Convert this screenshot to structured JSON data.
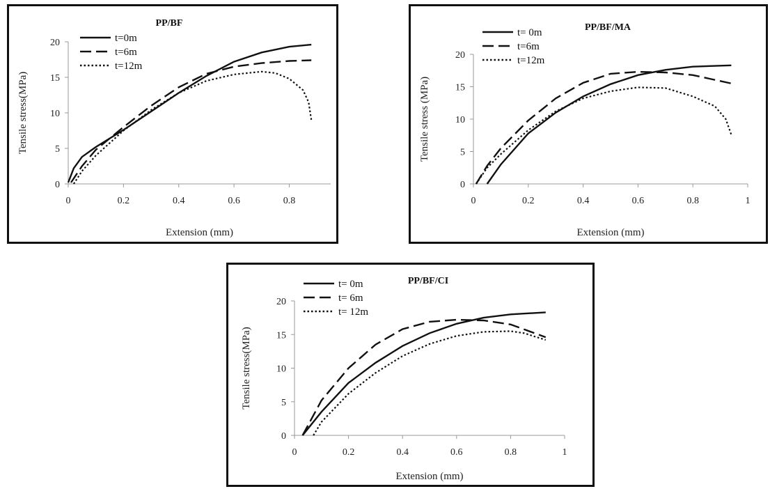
{
  "chart_data": [
    {
      "type": "line",
      "title": "PP/BF",
      "xlabel": "Extension (mm)",
      "ylabel": "Tensile stress(MPa)",
      "xlim": [
        0,
        0.95
      ],
      "ylim": [
        0,
        20
      ],
      "x_ticks": [
        "0",
        "0.2",
        "0.4",
        "0.6",
        "0.8"
      ],
      "y_ticks": [
        "0",
        "5",
        "10",
        "15",
        "20"
      ],
      "legend": [
        "t=0m",
        "t=6m",
        "t=12m"
      ],
      "legend_placement": "top-left",
      "grid": false,
      "series": [
        {
          "name": "t=0m",
          "style": "solid",
          "points": [
            [
              0,
              0.2
            ],
            [
              0.02,
              2.2
            ],
            [
              0.05,
              3.8
            ],
            [
              0.1,
              5.2
            ],
            [
              0.2,
              7.6
            ],
            [
              0.3,
              10.2
            ],
            [
              0.4,
              12.8
            ],
            [
              0.5,
              15.2
            ],
            [
              0.6,
              17.2
            ],
            [
              0.7,
              18.5
            ],
            [
              0.8,
              19.3
            ],
            [
              0.88,
              19.6
            ]
          ]
        },
        {
          "name": "t=6m",
          "style": "dashed",
          "points": [
            [
              0.01,
              0.2
            ],
            [
              0.05,
              2.5
            ],
            [
              0.1,
              4.8
            ],
            [
              0.2,
              8.0
            ],
            [
              0.3,
              11.0
            ],
            [
              0.4,
              13.6
            ],
            [
              0.5,
              15.5
            ],
            [
              0.6,
              16.5
            ],
            [
              0.7,
              17.0
            ],
            [
              0.8,
              17.3
            ],
            [
              0.88,
              17.4
            ]
          ]
        },
        {
          "name": "t=12m",
          "style": "dotted",
          "points": [
            [
              0.02,
              0
            ],
            [
              0.05,
              1.8
            ],
            [
              0.1,
              4.0
            ],
            [
              0.2,
              7.5
            ],
            [
              0.3,
              10.4
            ],
            [
              0.4,
              12.8
            ],
            [
              0.5,
              14.5
            ],
            [
              0.6,
              15.4
            ],
            [
              0.7,
              15.8
            ],
            [
              0.75,
              15.6
            ],
            [
              0.8,
              14.8
            ],
            [
              0.85,
              13.2
            ],
            [
              0.87,
              11.5
            ],
            [
              0.88,
              9.0
            ]
          ]
        }
      ]
    },
    {
      "type": "line",
      "title": "PP/BF/MA",
      "xlabel": "Extension (mm)",
      "ylabel": "Tensile stress (MPa)",
      "xlim": [
        0,
        1.0
      ],
      "ylim": [
        0,
        20
      ],
      "x_ticks": [
        "0",
        "0.2",
        "0.4",
        "0.6",
        "0.8",
        "1"
      ],
      "y_ticks": [
        "0",
        "5",
        "10",
        "15",
        "20"
      ],
      "legend": [
        "t= 0m",
        "t=6m",
        "t=12m"
      ],
      "legend_placement": "top-left",
      "grid": false,
      "series": [
        {
          "name": "t= 0m",
          "style": "solid",
          "points": [
            [
              0.05,
              0
            ],
            [
              0.1,
              3.0
            ],
            [
              0.2,
              7.8
            ],
            [
              0.3,
              11.0
            ],
            [
              0.4,
              13.5
            ],
            [
              0.5,
              15.4
            ],
            [
              0.6,
              16.8
            ],
            [
              0.7,
              17.6
            ],
            [
              0.8,
              18.1
            ],
            [
              0.94,
              18.3
            ]
          ]
        },
        {
          "name": "t=6m",
          "style": "dashed",
          "points": [
            [
              0.01,
              0
            ],
            [
              0.05,
              2.8
            ],
            [
              0.1,
              5.5
            ],
            [
              0.2,
              9.8
            ],
            [
              0.3,
              13.2
            ],
            [
              0.4,
              15.6
            ],
            [
              0.5,
              17.0
            ],
            [
              0.6,
              17.3
            ],
            [
              0.7,
              17.2
            ],
            [
              0.8,
              16.8
            ],
            [
              0.94,
              15.5
            ]
          ]
        },
        {
          "name": "t=12m",
          "style": "dotted",
          "points": [
            [
              0.01,
              0
            ],
            [
              0.05,
              2.5
            ],
            [
              0.1,
              4.6
            ],
            [
              0.2,
              8.3
            ],
            [
              0.3,
              11.2
            ],
            [
              0.4,
              13.2
            ],
            [
              0.5,
              14.3
            ],
            [
              0.6,
              14.9
            ],
            [
              0.7,
              14.8
            ],
            [
              0.8,
              13.5
            ],
            [
              0.88,
              12.0
            ],
            [
              0.92,
              10.0
            ],
            [
              0.94,
              7.6
            ]
          ]
        }
      ]
    },
    {
      "type": "line",
      "title": "PP/BF/CI",
      "xlabel": "Extension (mm)",
      "ylabel": "Tensile stress(MPa)",
      "xlim": [
        0,
        1.0
      ],
      "ylim": [
        0,
        20
      ],
      "x_ticks": [
        "0",
        "0.2",
        "0.4",
        "0.6",
        "0.8",
        "1"
      ],
      "y_ticks": [
        "0",
        "5",
        "10",
        "15",
        "20"
      ],
      "legend": [
        "t= 0m",
        "t= 6m",
        "t= 12m"
      ],
      "legend_placement": "top-left",
      "grid": false,
      "series": [
        {
          "name": "t= 0m",
          "style": "solid",
          "points": [
            [
              0.03,
              0
            ],
            [
              0.1,
              3.5
            ],
            [
              0.2,
              7.8
            ],
            [
              0.3,
              10.8
            ],
            [
              0.4,
              13.3
            ],
            [
              0.5,
              15.2
            ],
            [
              0.6,
              16.6
            ],
            [
              0.7,
              17.5
            ],
            [
              0.8,
              18.0
            ],
            [
              0.93,
              18.3
            ]
          ]
        },
        {
          "name": "t= 6m",
          "style": "dashed",
          "points": [
            [
              0.03,
              0
            ],
            [
              0.1,
              5.2
            ],
            [
              0.2,
              10.0
            ],
            [
              0.3,
              13.5
            ],
            [
              0.4,
              15.8
            ],
            [
              0.5,
              16.9
            ],
            [
              0.6,
              17.2
            ],
            [
              0.7,
              17.1
            ],
            [
              0.8,
              16.5
            ],
            [
              0.93,
              14.6
            ]
          ]
        },
        {
          "name": "t= 12m",
          "style": "dotted",
          "points": [
            [
              0.07,
              0
            ],
            [
              0.1,
              2.0
            ],
            [
              0.2,
              6.2
            ],
            [
              0.3,
              9.3
            ],
            [
              0.4,
              11.8
            ],
            [
              0.5,
              13.6
            ],
            [
              0.6,
              14.8
            ],
            [
              0.7,
              15.4
            ],
            [
              0.8,
              15.5
            ],
            [
              0.85,
              15.2
            ],
            [
              0.93,
              14.2
            ]
          ]
        }
      ]
    }
  ]
}
